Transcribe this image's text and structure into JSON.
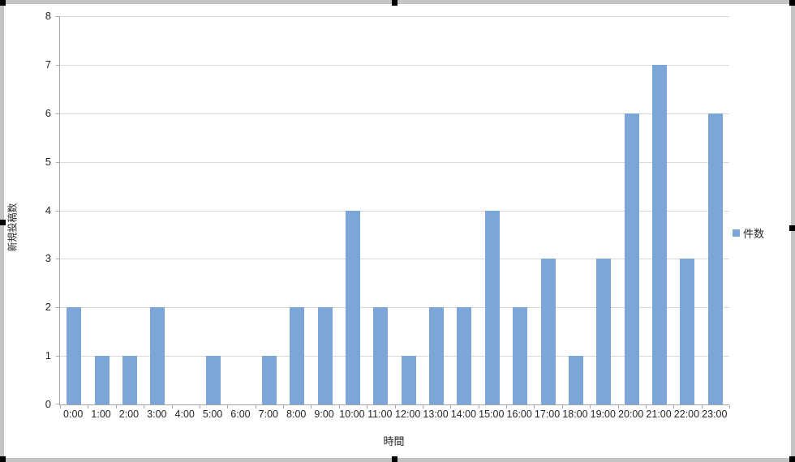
{
  "chart_data": {
    "type": "bar",
    "title": "",
    "categories": [
      "0:00",
      "1:00",
      "2:00",
      "3:00",
      "4:00",
      "5:00",
      "6:00",
      "7:00",
      "8:00",
      "9:00",
      "10:00",
      "11:00",
      "12:00",
      "13:00",
      "14:00",
      "15:00",
      "16:00",
      "17:00",
      "18:00",
      "19:00",
      "20:00",
      "21:00",
      "22:00",
      "23:00"
    ],
    "values": [
      2,
      1,
      1,
      2,
      0,
      1,
      0,
      1,
      2,
      2,
      4,
      2,
      1,
      2,
      2,
      4,
      2,
      3,
      1,
      3,
      6,
      7,
      3,
      6
    ],
    "series_name": "件数",
    "xlabel": "時間",
    "ylabel": "新規投稿数",
    "ylim": [
      0,
      8
    ],
    "ytick_step": 1,
    "grid": true,
    "legend_position": "right",
    "bar_color": "#7ca5d8"
  },
  "colors": {
    "gridline": "#d9d9d9",
    "axis_line": "#a6a6a6",
    "selection_border": "#c4c4c4",
    "selection_handle": "#000000",
    "text": "#262626"
  }
}
